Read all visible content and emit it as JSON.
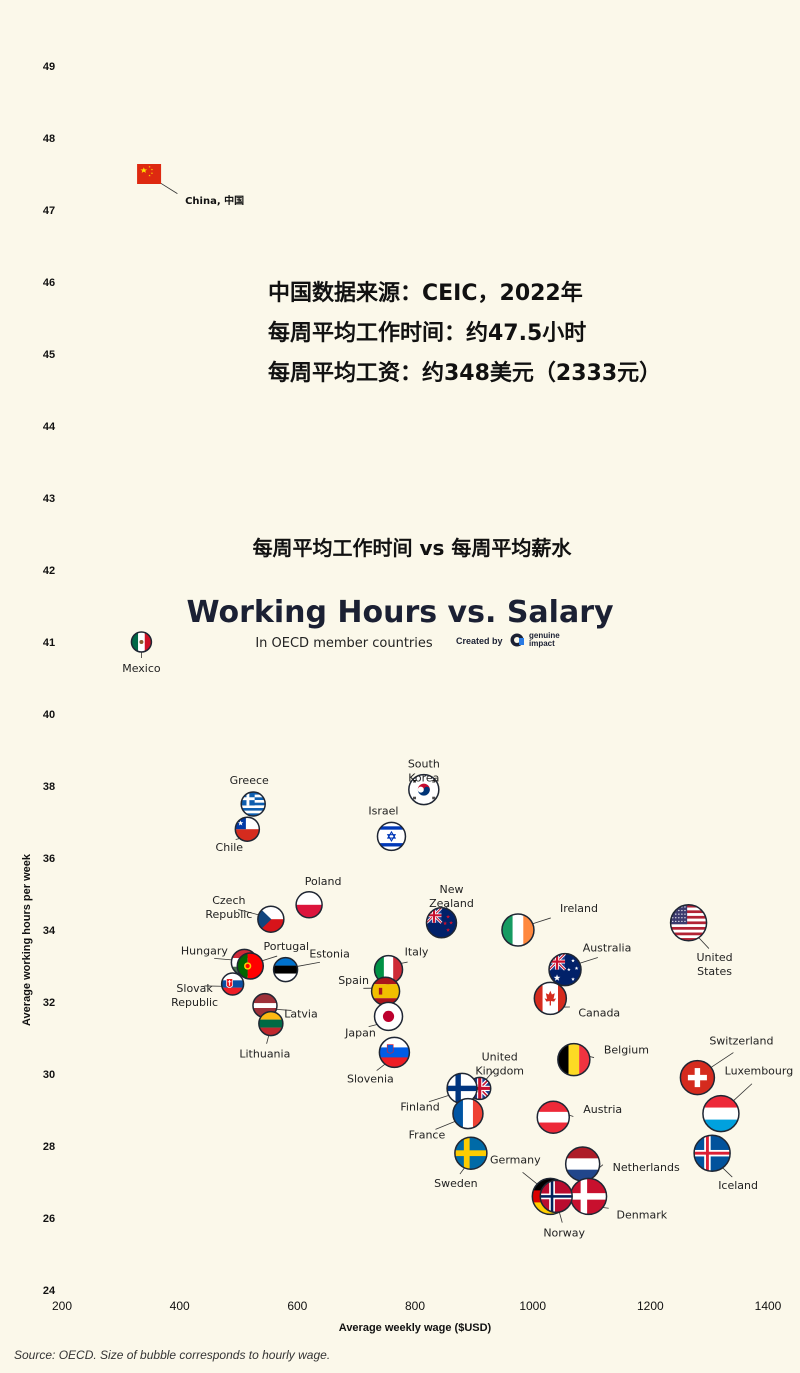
{
  "chart_data": {
    "type": "scatter",
    "title": "Working Hours vs. Salary",
    "subtitle": "In OECD member countries",
    "chinese_title": "每周平均工作时间 vs 每周平均薪水",
    "annotation_lines": [
      "中国数据来源：CEIC，2022年",
      "每周平均工作时间：约47.5小时",
      "每周平均工资：约348美元（2333元）"
    ],
    "credit": "Created by",
    "credit_brand": [
      "genuine",
      "impact"
    ],
    "xlabel": "Average weekly wage ($USD)",
    "ylabel": "Average working hours per week",
    "xlim": [
      200,
      1400
    ],
    "ylim": [
      24,
      49
    ],
    "xticks": [
      200,
      400,
      600,
      800,
      1000,
      1200,
      1400
    ],
    "yticks": [
      24,
      26,
      28,
      30,
      32,
      34,
      36,
      38,
      40,
      41,
      42,
      43,
      44,
      45,
      46,
      47,
      48,
      49
    ],
    "source": "Source: OECD. Size of bubble corresponds to hourly wage.",
    "points": [
      {
        "label": "China, 中国",
        "x": 348,
        "y": 47.5,
        "flag": "china"
      },
      {
        "label": "Mexico",
        "x": 335,
        "y": 41,
        "flag": "mexico"
      },
      {
        "label": "Greece",
        "x": 525,
        "y": 37.5,
        "flag": "greece"
      },
      {
        "label": "Chile",
        "x": 515,
        "y": 36.8,
        "flag": "chile"
      },
      {
        "label": "South Korea",
        "x": 815,
        "y": 37.9,
        "flag": "southkorea"
      },
      {
        "label": "Israel",
        "x": 760,
        "y": 36.6,
        "flag": "israel"
      },
      {
        "label": "Czech Republic",
        "x": 555,
        "y": 34.3,
        "flag": "czech"
      },
      {
        "label": "Poland",
        "x": 620,
        "y": 34.7,
        "flag": "poland"
      },
      {
        "label": "New Zealand",
        "x": 845,
        "y": 34.2,
        "flag": "newzealand"
      },
      {
        "label": "Ireland",
        "x": 975,
        "y": 34,
        "flag": "ireland"
      },
      {
        "label": "United States",
        "x": 1265,
        "y": 34.2,
        "flag": "usa"
      },
      {
        "label": "Hungary",
        "x": 510,
        "y": 33.1,
        "flag": "hungary"
      },
      {
        "label": "Portugal",
        "x": 520,
        "y": 33,
        "flag": "portugal"
      },
      {
        "label": "Estonia",
        "x": 580,
        "y": 32.9,
        "flag": "estonia"
      },
      {
        "label": "Italy",
        "x": 755,
        "y": 32.9,
        "flag": "italy"
      },
      {
        "label": "Australia",
        "x": 1055,
        "y": 32.9,
        "flag": "australia"
      },
      {
        "label": "Spain",
        "x": 750,
        "y": 32.3,
        "flag": "spain"
      },
      {
        "label": "Slovak Republic",
        "x": 490,
        "y": 32.5,
        "flag": "slovakia"
      },
      {
        "label": "Canada",
        "x": 1030,
        "y": 32.1,
        "flag": "canada"
      },
      {
        "label": "Latvia",
        "x": 545,
        "y": 31.9,
        "flag": "latvia"
      },
      {
        "label": "Lithuania",
        "x": 555,
        "y": 31.4,
        "flag": "lithuania"
      },
      {
        "label": "Japan",
        "x": 755,
        "y": 31.6,
        "flag": "japan"
      },
      {
        "label": "Slovenia",
        "x": 765,
        "y": 30.6,
        "flag": "slovenia"
      },
      {
        "label": "Belgium",
        "x": 1070,
        "y": 30.4,
        "flag": "belgium"
      },
      {
        "label": "Switzerland",
        "x": 1280,
        "y": 29.9,
        "flag": "switzerland"
      },
      {
        "label": "Luxembourg",
        "x": 1320,
        "y": 28.9,
        "flag": "luxembourg"
      },
      {
        "label": "United Kingdom",
        "x": 910,
        "y": 29.6,
        "flag": "uk"
      },
      {
        "label": "Finland",
        "x": 880,
        "y": 29.6,
        "flag": "finland"
      },
      {
        "label": "France",
        "x": 890,
        "y": 28.9,
        "flag": "france"
      },
      {
        "label": "Austria",
        "x": 1035,
        "y": 28.8,
        "flag": "austria"
      },
      {
        "label": "Iceland",
        "x": 1305,
        "y": 27.8,
        "flag": "iceland"
      },
      {
        "label": "Sweden",
        "x": 895,
        "y": 27.8,
        "flag": "sweden"
      },
      {
        "label": "Netherlands",
        "x": 1085,
        "y": 27.5,
        "flag": "netherlands"
      },
      {
        "label": "Germany",
        "x": 1030,
        "y": 26.6,
        "flag": "germany"
      },
      {
        "label": "Denmark",
        "x": 1095,
        "y": 26.6,
        "flag": "denmark"
      },
      {
        "label": "Norway",
        "x": 1040,
        "y": 26.6,
        "flag": "norway"
      }
    ]
  }
}
